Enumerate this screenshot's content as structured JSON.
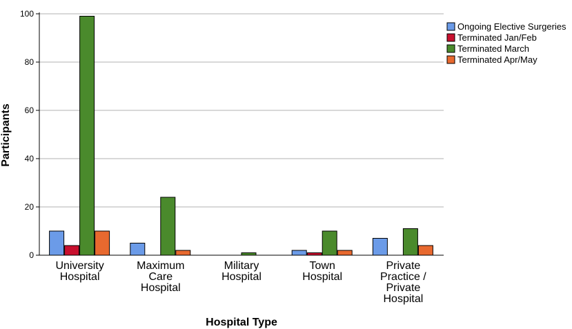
{
  "chart_data": {
    "type": "bar",
    "title": "",
    "xlabel": "Hospital Type",
    "ylabel": "Participants",
    "ylim": [
      0,
      100
    ],
    "yticks": [
      0,
      20,
      40,
      60,
      80,
      100
    ],
    "grid": true,
    "legend_position": "top-right",
    "categories": [
      [
        "University",
        "Hospital"
      ],
      [
        "Maximum",
        "Care",
        "Hospital"
      ],
      [
        "Military",
        "Hospital"
      ],
      [
        "Town",
        "Hospital"
      ],
      [
        "Private",
        "Practice /",
        "Private",
        "Hospital"
      ]
    ],
    "series": [
      {
        "name": "Ongoing Elective Surgeries",
        "color": "#6b9be8",
        "values": [
          10,
          5,
          0,
          2,
          7
        ]
      },
      {
        "name": "Terminated Jan/Feb",
        "color": "#c8102e",
        "values": [
          4,
          0,
          0,
          1,
          0
        ]
      },
      {
        "name": "Terminated March",
        "color": "#4a8a2c",
        "values": [
          99,
          24,
          1,
          10,
          11
        ]
      },
      {
        "name": "Terminated Apr/May",
        "color": "#e8692f",
        "values": [
          10,
          2,
          0,
          2,
          4
        ]
      }
    ]
  }
}
